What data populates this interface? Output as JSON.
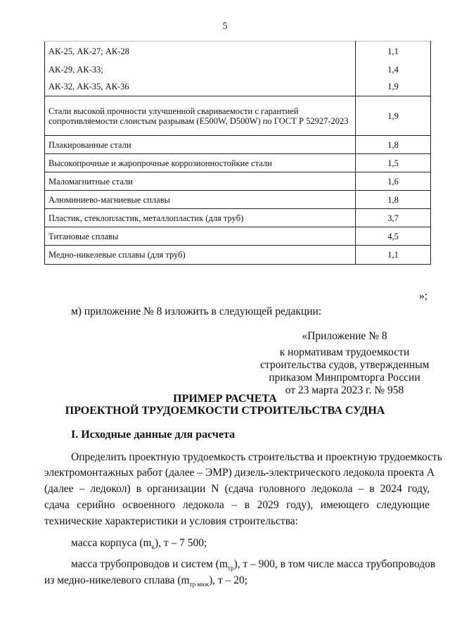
{
  "page_number": "5",
  "table": {
    "rows": [
      {
        "material": "АК-25, АК-27; АК-28",
        "value": "1,1"
      },
      {
        "material": "АК-29, АК-33;",
        "value": "1,4"
      },
      {
        "material": "АК-32, АК-35, АК-36",
        "value": "1,9"
      },
      {
        "material": "Стали высокой прочности улучшенной свариваемости с гарантией сопротивляемости слоистым разрывам (E500W, D500W) по ГОСТ Р 52927-2023",
        "value": "1,9"
      },
      {
        "material": "Плакированные стали",
        "value": "1,8"
      },
      {
        "material": "Высокопрочные и жаропрочные коррозионностойкие стали",
        "value": "1,5"
      },
      {
        "material": "Маломагнитные стали",
        "value": "1,6"
      },
      {
        "material": "Алюминиево-магниевые сплавы",
        "value": "1,8"
      },
      {
        "material": "Пластик, стеклопластик, металлопластик (для труб)",
        "value": "3,7"
      },
      {
        "material": "Титановые сплавы",
        "value": "4,5"
      },
      {
        "material": "Медно-никелевые сплавы (для труб)",
        "value": "1,1"
      }
    ],
    "closing": "»;"
  },
  "item_m": "м) приложение № 8 изложить в следующей редакции:",
  "appendix": {
    "line1": "«Приложение № 8",
    "line2": "к нормативам трудоемкости",
    "line3": "строительства судов, утвержденным",
    "line4": "приказом Минпромторга России",
    "line5": "от 23 марта 2023 г. № 958"
  },
  "title1": "ПРИМЕР РАСЧЕТА",
  "title2": "ПРОЕКТНОЙ ТРУДОЕМКОСТИ СТРОИТЕЛЬСТВА СУДНА",
  "section1": "I. Исходные данные для расчета",
  "para": [
    "Определить проектную трудоемкость строительства и проектную трудоемкость",
    "электромонтажных работ (далее – ЭМР) дизель-электрического ледокола проекта А",
    "(далее – ледокол) в организации N (сдача головного ледокола – в 2024 году,",
    "сдача серийно освоенного ледокола – в 2029 году), имеющего следующие",
    "технические характеристики и условия строительства:"
  ],
  "mass_hull": {
    "pre": "масса корпуса (m",
    "sub": "к",
    "post": "), т – 7 500;"
  },
  "mass_pipes": {
    "pre": "масса трубопроводов и систем (m",
    "sub": "тр",
    "post": "), т – 900, в том числе масса трубопроводов"
  },
  "mass_cuni": {
    "pre": "из медно-никелевого сплава (m",
    "sub": "тр мнж",
    "post": "), т – 20;"
  }
}
